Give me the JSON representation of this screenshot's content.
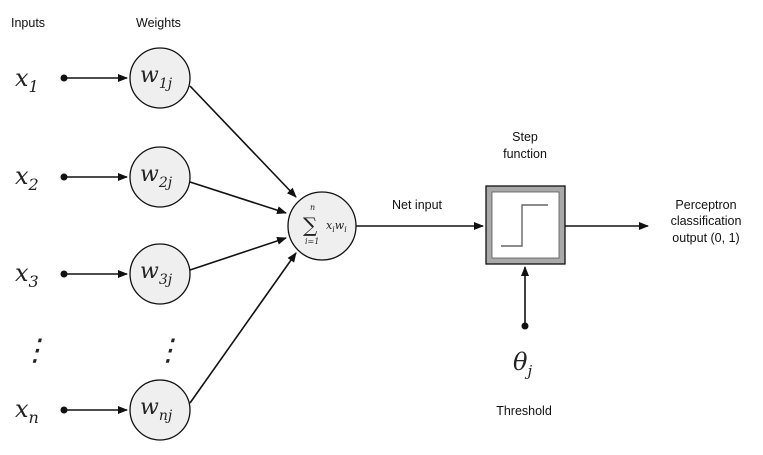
{
  "headers": {
    "inputs": "Inputs",
    "weights": "Weights"
  },
  "inputs": [
    {
      "base": "x",
      "sub": "1"
    },
    {
      "base": "x",
      "sub": "2"
    },
    {
      "base": "x",
      "sub": "3"
    },
    {
      "base": "x",
      "sub": "n"
    }
  ],
  "weights": [
    {
      "base": "w",
      "sub": "1j"
    },
    {
      "base": "w",
      "sub": "2j"
    },
    {
      "base": "w",
      "sub": "3j"
    },
    {
      "base": "w",
      "sub": "nj"
    }
  ],
  "ellipsis": "⋮",
  "sum_node": {
    "symbol": "∑",
    "upper": "n",
    "lower": "i=1",
    "term_x": "x",
    "term_x_sub": "i",
    "term_w": "w",
    "term_w_sub": "i"
  },
  "net_input_label": "Net input",
  "step": {
    "label_line1": "Step",
    "label_line2": "function"
  },
  "threshold": {
    "base": "θ",
    "sub": "j",
    "label": "Threshold"
  },
  "output": {
    "line1": "Perceptron",
    "line2": "classification",
    "line3": "output (0, 1)"
  }
}
